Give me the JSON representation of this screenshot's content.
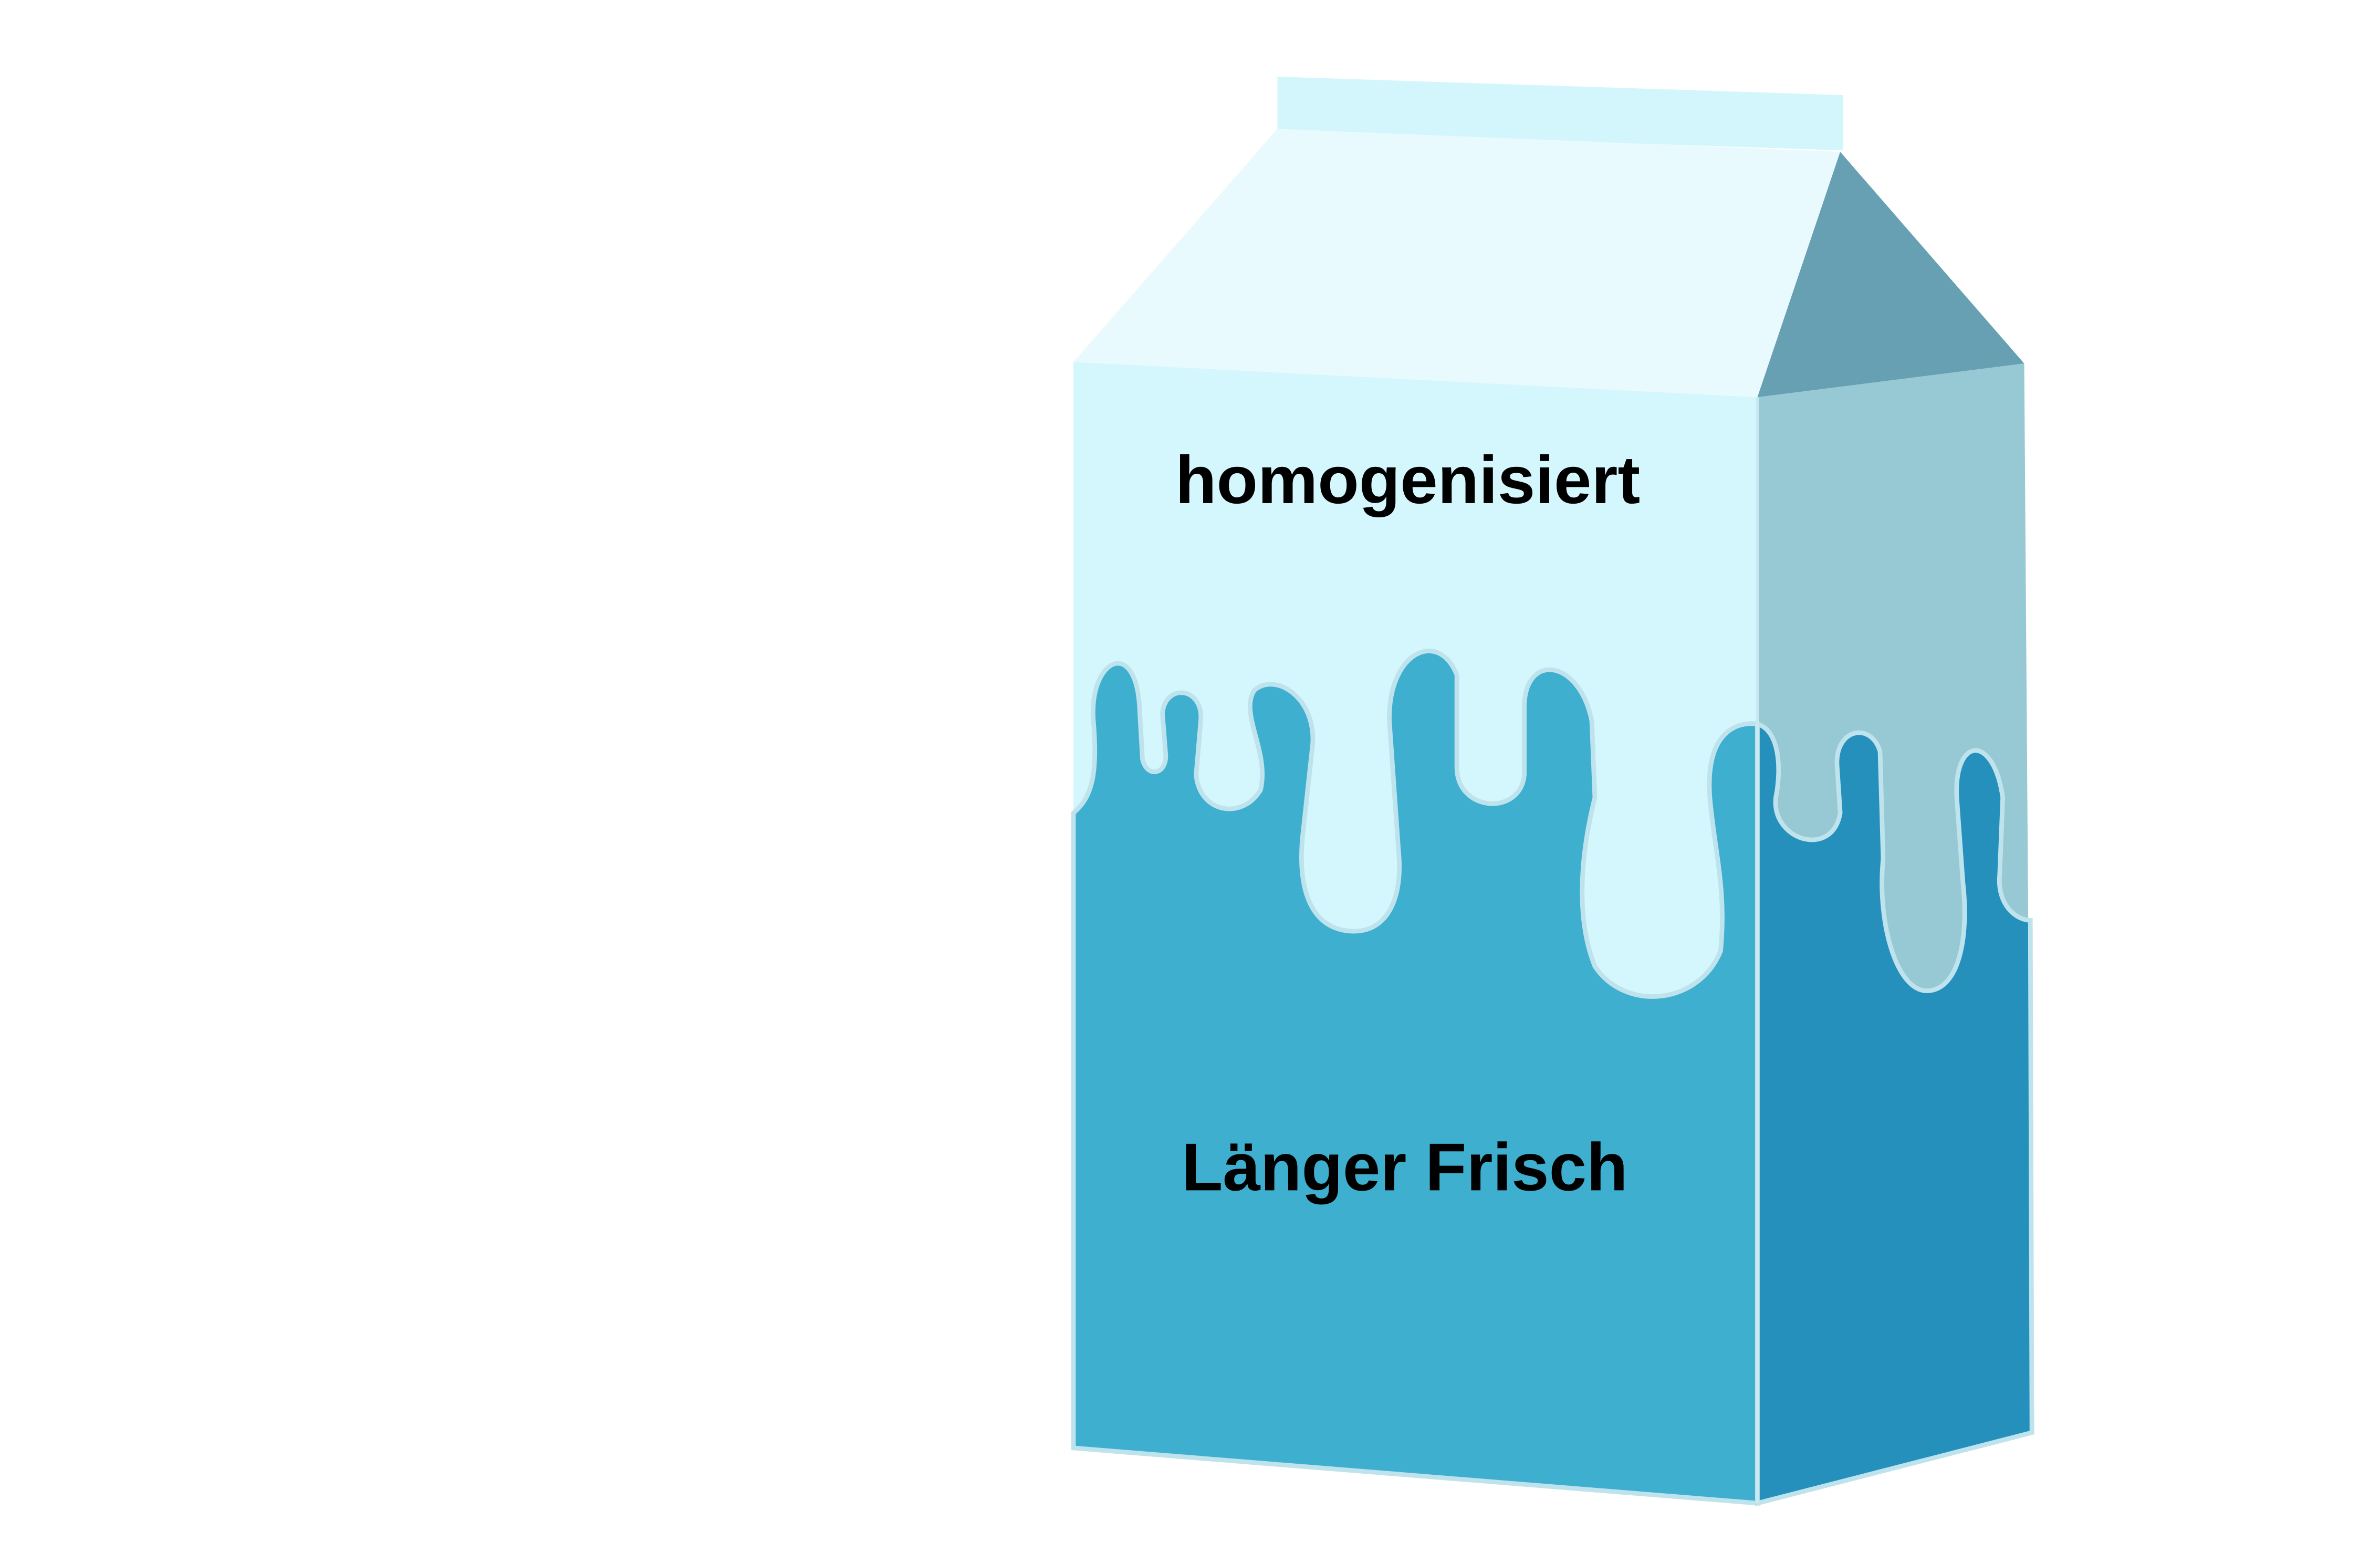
{
  "carton": {
    "top_label": "homogenisiert",
    "bottom_label": "Länger Frisch"
  },
  "colors": {
    "background": "#ffffff",
    "cap": "#d3f6fc",
    "roof_front": "#e8fafd",
    "roof_side": "#66a0b2",
    "front_upper": "#d4f6fd",
    "front_liquid": "#3fafd0",
    "side_upper": "#96c9d4",
    "side_liquid": "#2690bd",
    "text": "#000000",
    "edge": "#bfe3ec"
  }
}
